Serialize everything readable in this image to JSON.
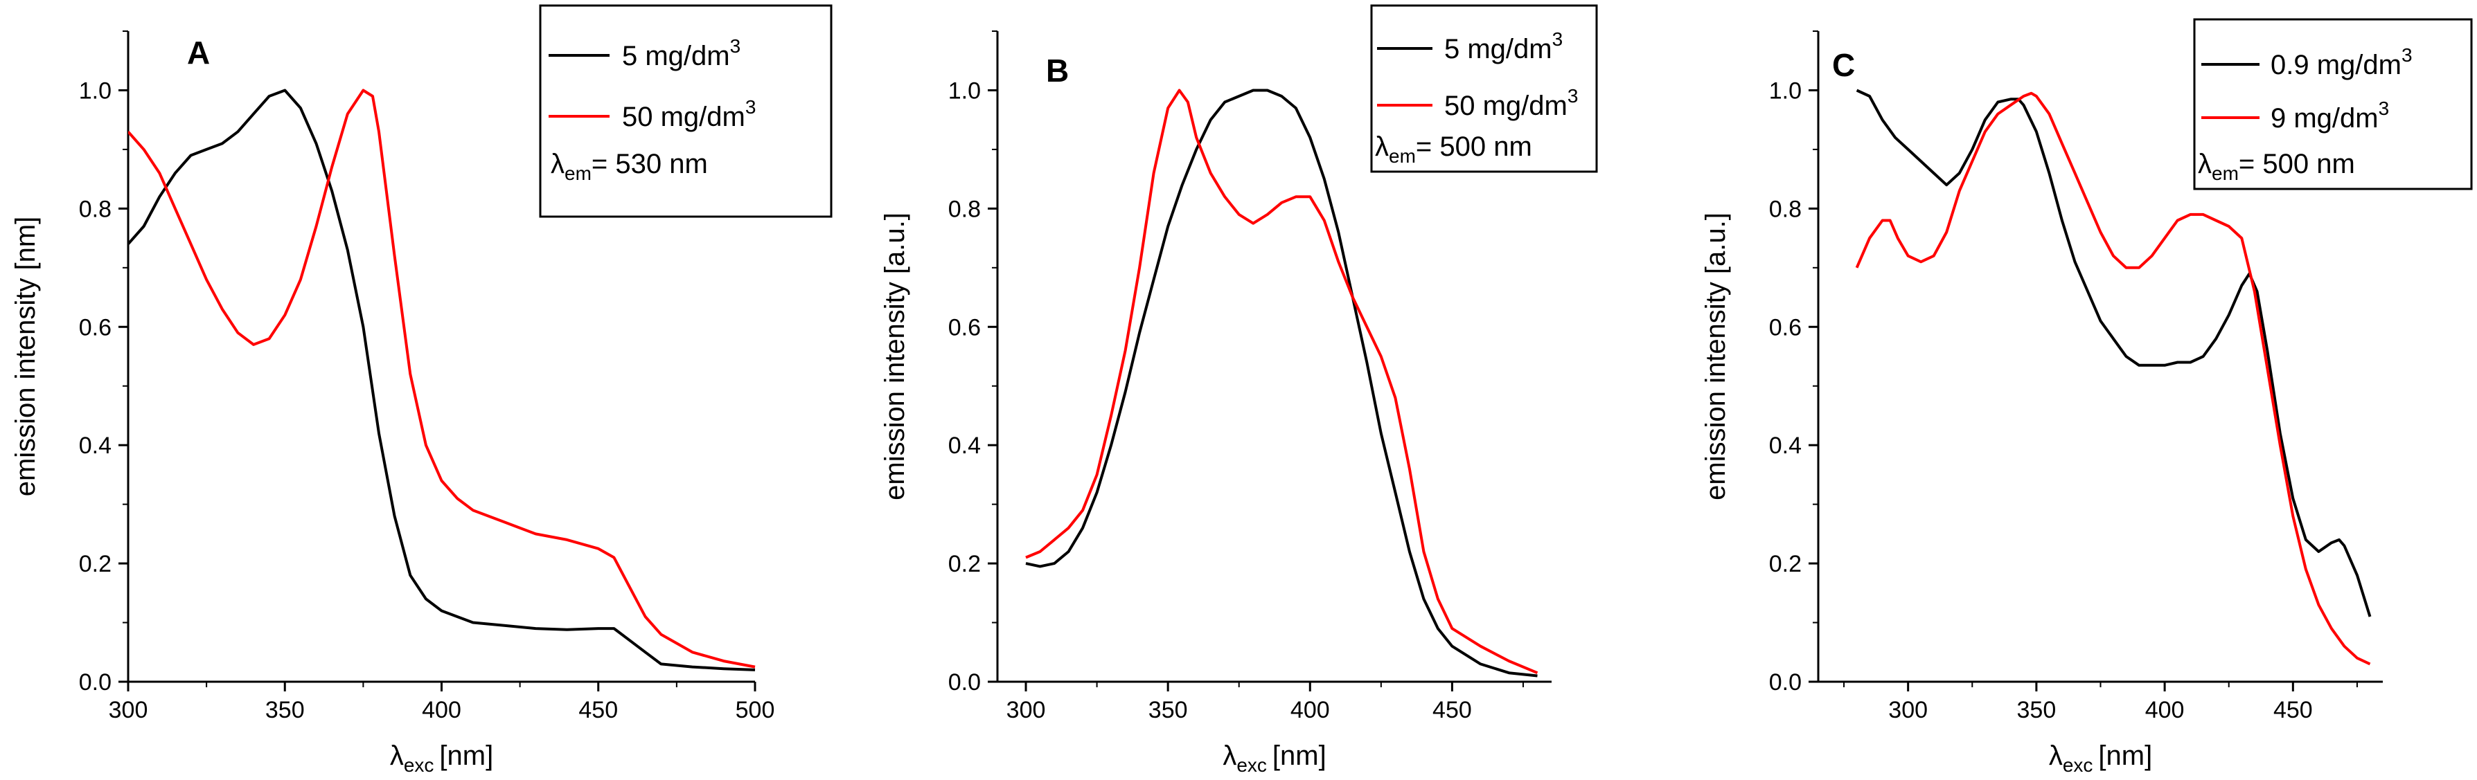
{
  "colors": {
    "series1": "#000000",
    "series2": "#ff0000",
    "axis": "#000000",
    "background": "#ffffff"
  },
  "chart_data": [
    {
      "panel": "A",
      "type": "line",
      "xlabel": {
        "symbol": "λ",
        "sub": "exc",
        "unit": "[nm]"
      },
      "ylabel": "emission intensity [nm]",
      "xlim": [
        300,
        500
      ],
      "ylim": [
        0,
        1.1
      ],
      "xticks": [
        300,
        350,
        400,
        450,
        500
      ],
      "xtick_labels": [
        "300",
        "350",
        "400",
        "450",
        "500"
      ],
      "yticks": [
        0,
        0.2,
        0.4,
        0.6,
        0.8,
        1.0
      ],
      "ytick_labels": [
        "0.0",
        "0.2",
        "0.4",
        "0.6",
        "0.8",
        "1.0"
      ],
      "legend": {
        "position": "top-right",
        "note_symbol": "λ",
        "note_sub": "em",
        "note_text": "= 530 nm"
      },
      "series": [
        {
          "name": "5 mg/dm",
          "sup": "3",
          "color": "#000000",
          "x": [
            300,
            305,
            310,
            315,
            320,
            325,
            330,
            335,
            340,
            345,
            350,
            355,
            360,
            365,
            370,
            375,
            380,
            385,
            390,
            395,
            400,
            405,
            410,
            420,
            430,
            440,
            450,
            455,
            460,
            465,
            470,
            480,
            490,
            500
          ],
          "y": [
            0.74,
            0.77,
            0.82,
            0.86,
            0.89,
            0.9,
            0.91,
            0.93,
            0.96,
            0.99,
            1.0,
            0.97,
            0.91,
            0.83,
            0.73,
            0.6,
            0.42,
            0.28,
            0.18,
            0.14,
            0.12,
            0.11,
            0.1,
            0.095,
            0.09,
            0.088,
            0.09,
            0.09,
            0.07,
            0.05,
            0.03,
            0.025,
            0.022,
            0.02
          ]
        },
        {
          "name": "50 mg/dm",
          "sup": "3",
          "color": "#ff0000",
          "x": [
            300,
            305,
            310,
            315,
            320,
            325,
            330,
            335,
            340,
            345,
            350,
            355,
            360,
            365,
            370,
            375,
            378,
            380,
            385,
            390,
            395,
            400,
            405,
            410,
            420,
            430,
            440,
            450,
            455,
            460,
            465,
            470,
            480,
            490,
            500
          ],
          "y": [
            0.93,
            0.9,
            0.86,
            0.8,
            0.74,
            0.68,
            0.63,
            0.59,
            0.57,
            0.58,
            0.62,
            0.68,
            0.77,
            0.87,
            0.96,
            1.0,
            0.99,
            0.93,
            0.72,
            0.52,
            0.4,
            0.34,
            0.31,
            0.29,
            0.27,
            0.25,
            0.24,
            0.225,
            0.21,
            0.16,
            0.11,
            0.08,
            0.05,
            0.035,
            0.025
          ]
        }
      ]
    },
    {
      "panel": "B",
      "type": "line",
      "xlabel": {
        "symbol": "λ",
        "sub": "exc",
        "unit": "[nm]"
      },
      "ylabel": "emission intensity [a.u.]",
      "xlim": [
        290,
        485
      ],
      "ylim": [
        0,
        1.1
      ],
      "xticks": [
        300,
        350,
        400,
        450
      ],
      "xtick_labels": [
        "300",
        "350",
        "400",
        "450"
      ],
      "yticks": [
        0,
        0.2,
        0.4,
        0.6,
        0.8,
        1.0
      ],
      "ytick_labels": [
        "0.0",
        "0.2",
        "0.4",
        "0.6",
        "0.8",
        "1.0"
      ],
      "legend": {
        "position": "top-right",
        "note_symbol": "λ",
        "note_sub": "em",
        "note_text": "= 500 nm"
      },
      "series": [
        {
          "name": "5 mg/dm",
          "sup": "3",
          "color": "#000000",
          "x": [
            300,
            305,
            310,
            315,
            320,
            325,
            330,
            335,
            340,
            345,
            350,
            355,
            360,
            365,
            370,
            375,
            380,
            385,
            390,
            395,
            400,
            405,
            410,
            415,
            420,
            425,
            430,
            435,
            440,
            445,
            450,
            460,
            470,
            480
          ],
          "y": [
            0.2,
            0.195,
            0.2,
            0.22,
            0.26,
            0.32,
            0.4,
            0.49,
            0.59,
            0.68,
            0.77,
            0.84,
            0.9,
            0.95,
            0.98,
            0.99,
            1.0,
            1.0,
            0.99,
            0.97,
            0.92,
            0.85,
            0.76,
            0.65,
            0.54,
            0.42,
            0.32,
            0.22,
            0.14,
            0.09,
            0.06,
            0.03,
            0.015,
            0.01
          ]
        },
        {
          "name": "50 mg/dm",
          "sup": "3",
          "color": "#ff0000",
          "x": [
            300,
            305,
            310,
            315,
            320,
            325,
            330,
            335,
            340,
            345,
            350,
            354,
            357,
            360,
            365,
            370,
            375,
            380,
            385,
            390,
            395,
            400,
            405,
            410,
            415,
            420,
            425,
            430,
            435,
            440,
            445,
            450,
            460,
            470,
            480
          ],
          "y": [
            0.21,
            0.22,
            0.24,
            0.26,
            0.29,
            0.35,
            0.45,
            0.56,
            0.7,
            0.86,
            0.97,
            1.0,
            0.98,
            0.92,
            0.86,
            0.82,
            0.79,
            0.775,
            0.79,
            0.81,
            0.82,
            0.82,
            0.78,
            0.71,
            0.65,
            0.6,
            0.55,
            0.48,
            0.36,
            0.22,
            0.14,
            0.09,
            0.06,
            0.035,
            0.015
          ]
        }
      ]
    },
    {
      "panel": "C",
      "type": "line",
      "xlabel": {
        "symbol": "λ",
        "sub": "exc",
        "unit": "[nm]"
      },
      "ylabel": "emission intensity [a.u.]",
      "xlim": [
        265,
        485
      ],
      "ylim": [
        0,
        1.1
      ],
      "xticks": [
        300,
        350,
        400,
        450
      ],
      "xtick_labels": [
        "300",
        "350",
        "400",
        "450"
      ],
      "yticks": [
        0,
        0.2,
        0.4,
        0.6,
        0.8,
        1.0
      ],
      "ytick_labels": [
        "0.0",
        "0.2",
        "0.4",
        "0.6",
        "0.8",
        "1.0"
      ],
      "legend": {
        "position": "top-right",
        "note_symbol": "λ",
        "note_sub": "em",
        "note_text": "= 500 nm"
      },
      "series": [
        {
          "name": "0.9  mg/dm",
          "sup": "3",
          "color": "#000000",
          "x": [
            280,
            285,
            290,
            295,
            300,
            305,
            310,
            315,
            320,
            325,
            330,
            335,
            340,
            343,
            345,
            350,
            355,
            360,
            365,
            370,
            375,
            380,
            385,
            390,
            395,
            400,
            405,
            410,
            415,
            420,
            425,
            430,
            433,
            436,
            440,
            445,
            450,
            455,
            460,
            465,
            468,
            470,
            475,
            480
          ],
          "y": [
            1.0,
            0.99,
            0.95,
            0.92,
            0.9,
            0.88,
            0.86,
            0.84,
            0.86,
            0.9,
            0.95,
            0.98,
            0.985,
            0.985,
            0.975,
            0.93,
            0.86,
            0.78,
            0.71,
            0.66,
            0.61,
            0.58,
            0.55,
            0.535,
            0.535,
            0.535,
            0.54,
            0.54,
            0.55,
            0.58,
            0.62,
            0.67,
            0.69,
            0.66,
            0.56,
            0.42,
            0.31,
            0.24,
            0.22,
            0.235,
            0.24,
            0.23,
            0.18,
            0.11
          ]
        },
        {
          "name": "9 mg/dm",
          "sup": "3",
          "color": "#ff0000",
          "x": [
            280,
            285,
            290,
            293,
            296,
            300,
            305,
            310,
            315,
            320,
            325,
            330,
            335,
            340,
            345,
            348,
            350,
            355,
            360,
            365,
            370,
            375,
            380,
            385,
            390,
            395,
            400,
            405,
            410,
            415,
            420,
            425,
            430,
            435,
            440,
            445,
            450,
            455,
            460,
            465,
            470,
            475,
            480
          ],
          "y": [
            0.7,
            0.75,
            0.78,
            0.78,
            0.75,
            0.72,
            0.71,
            0.72,
            0.76,
            0.83,
            0.88,
            0.93,
            0.96,
            0.975,
            0.99,
            0.995,
            0.99,
            0.96,
            0.91,
            0.86,
            0.81,
            0.76,
            0.72,
            0.7,
            0.7,
            0.72,
            0.75,
            0.78,
            0.79,
            0.79,
            0.78,
            0.77,
            0.75,
            0.66,
            0.53,
            0.4,
            0.28,
            0.19,
            0.13,
            0.09,
            0.06,
            0.04,
            0.03
          ]
        }
      ]
    }
  ]
}
